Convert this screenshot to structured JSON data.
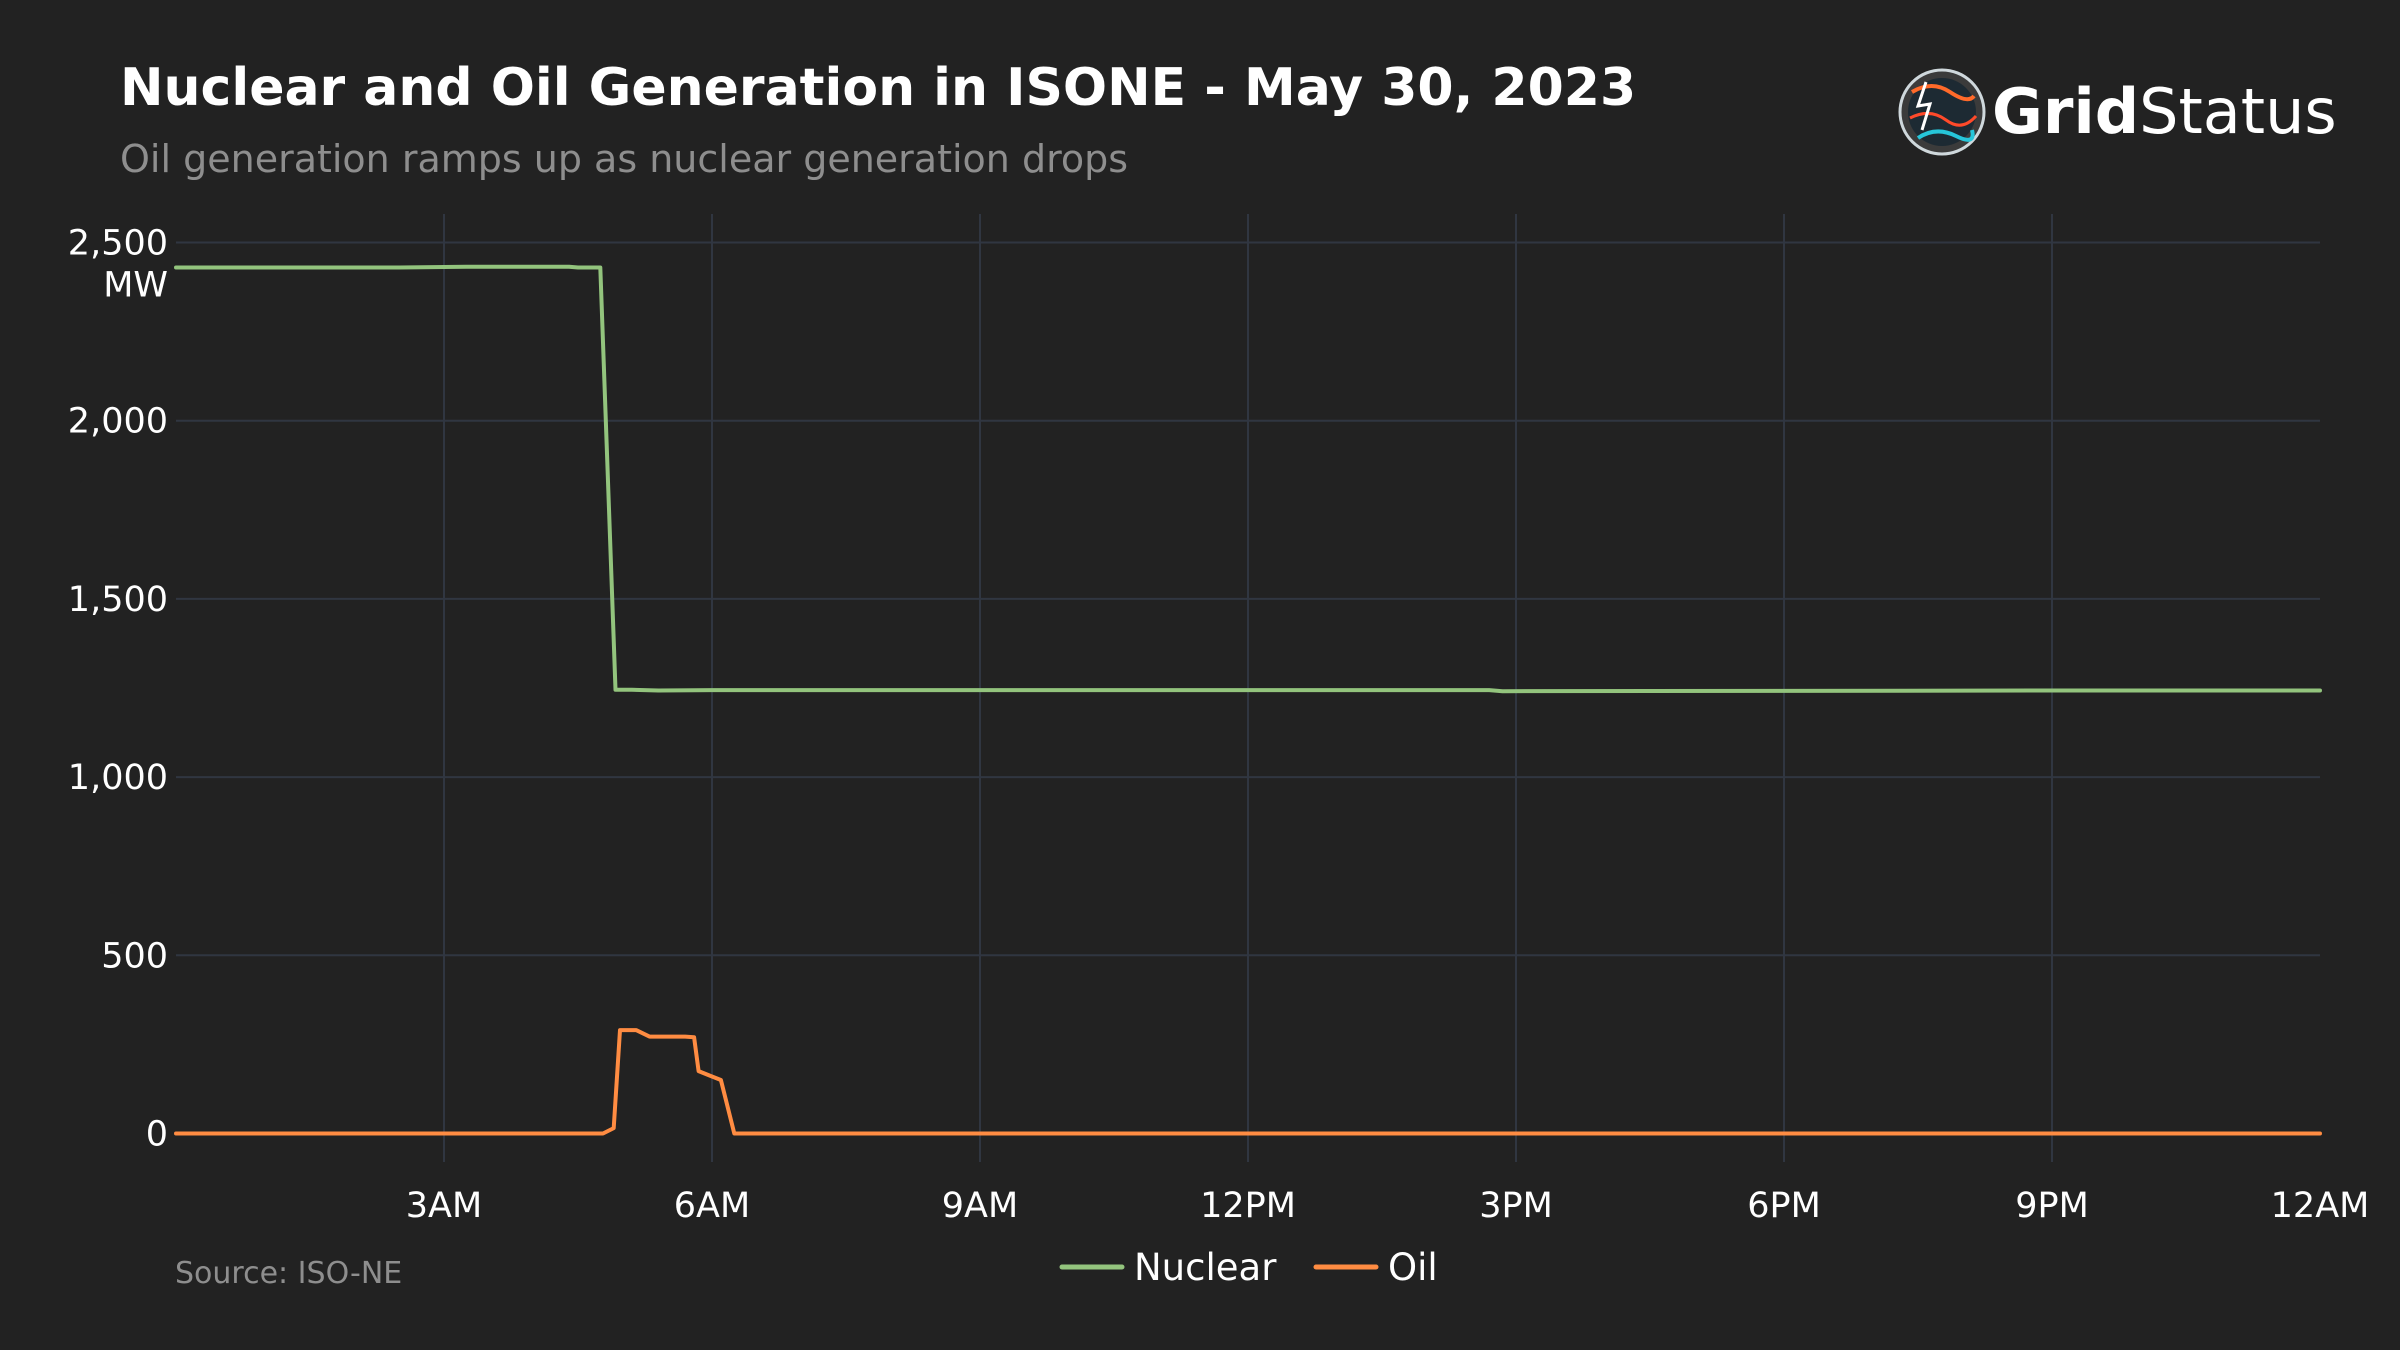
{
  "header": {
    "title": "Nuclear and Oil Generation in ISONE - May 30, 2023",
    "subtitle": "Oil generation ramps up as nuclear generation drops"
  },
  "logo": {
    "icon": "grid-status-globe-icon",
    "bold_text": "Grid",
    "regular_text": "Status"
  },
  "footer": {
    "source": "Source: ISO-NE"
  },
  "colors": {
    "background": "#222222",
    "grid": "#303641",
    "nuclear": "#93c47d",
    "oil": "#ff8c42"
  },
  "chart_data": {
    "type": "line",
    "title": "Nuclear and Oil Generation in ISONE - May 30, 2023",
    "subtitle": "Oil generation ramps up as nuclear generation drops",
    "xlabel": "",
    "ylabel": "MW",
    "x_unit": "hours",
    "xlim": [
      0,
      24
    ],
    "ylim": [
      -80,
      2580
    ],
    "grid": true,
    "legend_position": "bottom-center",
    "x_ticks": [
      {
        "value": 3,
        "label": "3AM"
      },
      {
        "value": 6,
        "label": "6AM"
      },
      {
        "value": 9,
        "label": "9AM"
      },
      {
        "value": 12,
        "label": "12PM"
      },
      {
        "value": 15,
        "label": "3PM"
      },
      {
        "value": 18,
        "label": "6PM"
      },
      {
        "value": 21,
        "label": "9PM"
      },
      {
        "value": 24,
        "label": "12AM"
      }
    ],
    "y_ticks": [
      {
        "value": 0,
        "label": "0"
      },
      {
        "value": 500,
        "label": "500"
      },
      {
        "value": 1000,
        "label": "1,000"
      },
      {
        "value": 1500,
        "label": "1,500"
      },
      {
        "value": 2000,
        "label": "2,000"
      },
      {
        "value": 2500,
        "label": "2,500"
      }
    ],
    "y_top_unit_label": "MW",
    "series": [
      {
        "name": "Nuclear",
        "color": "#93c47d",
        "x": [
          0,
          2.5,
          3.25,
          4.0,
          4.4,
          4.5,
          4.75,
          4.92,
          5.1,
          5.4,
          6.0,
          6.8,
          9,
          12,
          14.7,
          14.85,
          18,
          21,
          24
        ],
        "y": [
          2430,
          2430,
          2432,
          2432,
          2432,
          2430,
          2430,
          1245,
          1245,
          1243,
          1244,
          1244,
          1244,
          1244,
          1244,
          1241,
          1242,
          1243,
          1243
        ]
      },
      {
        "name": "Oil",
        "color": "#ff8c42",
        "x": [
          0,
          4.6,
          4.78,
          4.9,
          4.97,
          5.15,
          5.3,
          5.45,
          5.7,
          5.8,
          5.85,
          6.0,
          6.1,
          6.25,
          9,
          12,
          15,
          18,
          21,
          24
        ],
        "y": [
          0,
          0,
          0,
          15,
          290,
          290,
          272,
          272,
          272,
          270,
          175,
          160,
          150,
          0,
          0,
          0,
          0,
          0,
          0,
          0
        ]
      }
    ]
  }
}
